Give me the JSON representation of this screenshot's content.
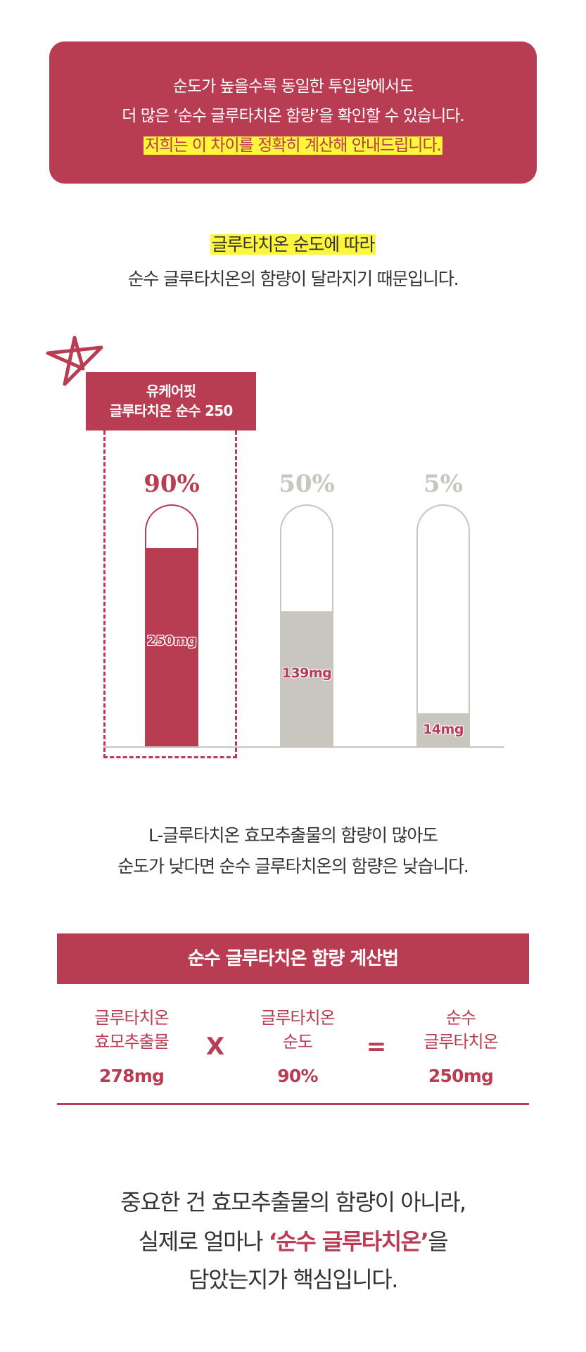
{
  "intro": {
    "line1": "순도가 높을수록 동일한 투입량에서도",
    "line2": "더 많은 ‘순수 글루타치온 함량’을 확인할 수 있습니다.",
    "line3_highlight": "저희는 이 차이를 정확히 계산해 안내드립니다."
  },
  "subheading": {
    "highlight": "글루타치온 순도에 따라",
    "line2": "순수 글루타치온의 함량이 달라지기 때문입니다."
  },
  "comparison": {
    "star_icon": "hand-drawn-star-icon",
    "product_label_line1": "유케어핏",
    "product_label_line2": "글루타치온 순수 250",
    "colors": {
      "accent": "#b83c52",
      "neutral": "#c9c5bf",
      "highlight": "#fff53a"
    }
  },
  "chart_data": {
    "type": "bar",
    "categories": [
      "90%",
      "50%",
      "5%"
    ],
    "values": [
      250,
      139,
      14
    ],
    "unit": "mg",
    "labels": [
      "250mg",
      "139mg",
      "14mg"
    ],
    "fill_levels": [
      0.82,
      0.56,
      0.14
    ],
    "highlighted": "90%"
  },
  "note": {
    "line1": "L-글루타치온 효모추출물의 함량이 많아도",
    "line2": "순도가 낮다면 순수 글루타치온의 함량은 낮습니다."
  },
  "formula": {
    "title": "순수 글루타치온 함량 계산법",
    "col1": {
      "line1": "글루타치온",
      "line2": "효모추출물",
      "value": "278mg"
    },
    "times": "X",
    "col2": {
      "line1": "글루타치온",
      "line2": "순도",
      "value": "90%"
    },
    "equals": "=",
    "col3": {
      "line1": "순수",
      "line2": "글루타치온",
      "value": "250mg"
    }
  },
  "conclusion": {
    "line1": "중요한 건 효모추출물의 함량이 아니라,",
    "line2_pre": "실제로 얼마나 ",
    "line2_emph": "‘순수 글루타치온’",
    "line2_post": "을",
    "line3": "담았는지가 핵심입니다."
  }
}
